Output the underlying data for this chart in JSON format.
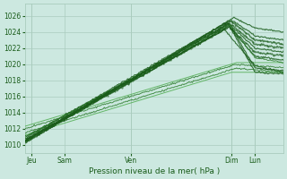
{
  "xlabel": "Pression niveau de la mer( hPa )",
  "bg_color": "#cce8e0",
  "grid_color": "#aaccbe",
  "line_color_dark": "#1a5c1a",
  "line_color_mid": "#2e7d2e",
  "line_color_light": "#4aaa4a",
  "yticks": [
    1010,
    1012,
    1014,
    1016,
    1018,
    1020,
    1022,
    1024,
    1026
  ],
  "ylim": [
    1009.0,
    1027.5
  ],
  "xlim": [
    0,
    110
  ],
  "xtick_positions": [
    3,
    17,
    45,
    88,
    98
  ],
  "xtick_labels": [
    "Jeu",
    "Sam",
    "Ven",
    "Dim",
    "Lun"
  ],
  "vline_positions": [
    3,
    45,
    88,
    98
  ]
}
